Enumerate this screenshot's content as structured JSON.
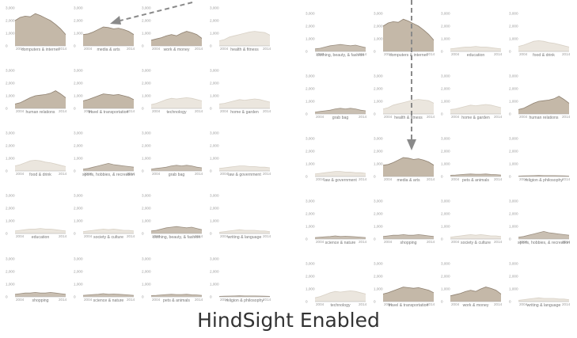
{
  "caption": "HindSight Enabled",
  "chart_data": [
    {
      "panel": "left",
      "type": "area",
      "x_start_label": "2004",
      "x_end_label": "2014",
      "y_ticks": [
        "3,000",
        "2,000",
        "1,000",
        "0"
      ],
      "ylim": [
        0,
        3000
      ],
      "charts": [
        {
          "label": "computers & internet",
          "state": "strong",
          "values": [
            2000,
            2250,
            2350,
            2300,
            2550,
            2400,
            2200,
            2000,
            1700,
            1350,
            900
          ]
        },
        {
          "label": "media & arts",
          "state": "strong",
          "values": [
            900,
            950,
            1100,
            1300,
            1500,
            1450,
            1350,
            1400,
            1300,
            1150,
            900
          ]
        },
        {
          "label": "work & money",
          "state": "strong",
          "values": [
            450,
            550,
            650,
            800,
            900,
            800,
            1000,
            1150,
            1050,
            900,
            600
          ]
        },
        {
          "label": "health & fitness",
          "state": "faint",
          "values": [
            400,
            500,
            700,
            800,
            900,
            1000,
            1100,
            1150,
            1100,
            1050,
            850
          ]
        },
        {
          "label": "human relations",
          "state": "strong",
          "values": [
            350,
            450,
            650,
            850,
            1000,
            1050,
            1100,
            1200,
            1400,
            1150,
            850
          ]
        },
        {
          "label": "travel & transportation",
          "state": "strong",
          "values": [
            600,
            700,
            850,
            1000,
            1150,
            1100,
            1050,
            1100,
            1000,
            900,
            700
          ]
        },
        {
          "label": "technology",
          "state": "faint",
          "values": [
            300,
            400,
            550,
            700,
            800,
            750,
            800,
            850,
            800,
            700,
            600
          ]
        },
        {
          "label": "home & garden",
          "state": "faint",
          "values": [
            350,
            400,
            500,
            600,
            700,
            650,
            700,
            750,
            700,
            600,
            500
          ]
        },
        {
          "label": "food & drink",
          "state": "faint",
          "values": [
            400,
            500,
            650,
            800,
            850,
            800,
            700,
            650,
            550,
            450,
            350
          ]
        },
        {
          "label": "sports, hobbies, & recreation",
          "state": "medium",
          "values": [
            150,
            200,
            300,
            400,
            500,
            600,
            500,
            450,
            400,
            350,
            300
          ]
        },
        {
          "label": "grab bag",
          "state": "medium",
          "values": [
            150,
            200,
            250,
            300,
            400,
            450,
            400,
            450,
            400,
            300,
            250
          ]
        },
        {
          "label": "law & government",
          "state": "faint",
          "values": [
            200,
            250,
            300,
            350,
            400,
            400,
            350,
            350,
            300,
            300,
            250
          ]
        },
        {
          "label": "education",
          "state": "faint",
          "values": [
            200,
            250,
            300,
            350,
            350,
            400,
            350,
            350,
            300,
            250,
            200
          ]
        },
        {
          "label": "society & culture",
          "state": "faint",
          "values": [
            150,
            200,
            250,
            300,
            350,
            300,
            350,
            300,
            250,
            250,
            200
          ]
        },
        {
          "label": "clothing, beauty, & fashion",
          "state": "medium",
          "values": [
            200,
            250,
            350,
            450,
            500,
            550,
            500,
            450,
            500,
            400,
            300
          ]
        },
        {
          "label": "writing & language",
          "state": "faint",
          "values": [
            100,
            150,
            200,
            250,
            300,
            250,
            250,
            250,
            200,
            200,
            150
          ]
        },
        {
          "label": "shopping",
          "state": "medium",
          "values": [
            200,
            250,
            300,
            300,
            350,
            300,
            300,
            350,
            300,
            250,
            200
          ]
        },
        {
          "label": "science & nature",
          "state": "medium",
          "values": [
            120,
            150,
            180,
            200,
            250,
            200,
            220,
            200,
            180,
            150,
            120
          ]
        },
        {
          "label": "pets & animals",
          "state": "medium",
          "values": [
            100,
            120,
            150,
            180,
            200,
            180,
            180,
            200,
            160,
            150,
            120
          ]
        },
        {
          "label": "religion & philosophy",
          "state": "medium",
          "values": [
            40,
            50,
            60,
            70,
            80,
            70,
            70,
            70,
            60,
            50,
            40
          ]
        }
      ]
    },
    {
      "panel": "right",
      "type": "area",
      "x_start_label": "2004",
      "x_end_label": "2014",
      "y_ticks": [
        "3,000",
        "2,000",
        "1,000",
        "0"
      ],
      "ylim": [
        0,
        3000
      ],
      "charts": [
        {
          "label": "clothing, beauty, & fashion",
          "state": "medium",
          "values": [
            200,
            250,
            350,
            450,
            500,
            550,
            500,
            450,
            500,
            400,
            300
          ]
        },
        {
          "label": "computers & internet",
          "state": "strong",
          "values": [
            2000,
            2250,
            2350,
            2300,
            2550,
            2400,
            2200,
            2000,
            1700,
            1350,
            900
          ]
        },
        {
          "label": "education",
          "state": "faint",
          "values": [
            200,
            250,
            300,
            350,
            350,
            400,
            350,
            350,
            300,
            250,
            200
          ]
        },
        {
          "label": "food & drink",
          "state": "faint",
          "values": [
            400,
            500,
            650,
            800,
            850,
            800,
            700,
            650,
            550,
            450,
            350
          ]
        },
        {
          "label": "grab bag",
          "state": "medium",
          "values": [
            150,
            200,
            250,
            300,
            400,
            450,
            400,
            450,
            400,
            300,
            250
          ]
        },
        {
          "label": "health & fitness",
          "state": "faint",
          "values": [
            400,
            500,
            700,
            800,
            900,
            1000,
            1100,
            1150,
            1100,
            1050,
            850
          ]
        },
        {
          "label": "home & garden",
          "state": "faint",
          "values": [
            350,
            400,
            500,
            600,
            700,
            650,
            700,
            750,
            700,
            600,
            500
          ]
        },
        {
          "label": "human relations",
          "state": "strong",
          "values": [
            350,
            450,
            650,
            850,
            1000,
            1050,
            1100,
            1200,
            1400,
            1150,
            850
          ]
        },
        {
          "label": "law & government",
          "state": "faint",
          "values": [
            200,
            250,
            300,
            350,
            400,
            400,
            350,
            350,
            300,
            300,
            250
          ]
        },
        {
          "label": "media & arts",
          "state": "strong",
          "values": [
            900,
            950,
            1100,
            1300,
            1500,
            1450,
            1350,
            1400,
            1300,
            1150,
            900
          ]
        },
        {
          "label": "pets & animals",
          "state": "medium",
          "values": [
            100,
            120,
            150,
            180,
            200,
            180,
            180,
            200,
            160,
            150,
            120
          ]
        },
        {
          "label": "religion & philosophy",
          "state": "medium",
          "values": [
            40,
            50,
            60,
            70,
            80,
            70,
            70,
            70,
            60,
            50,
            40
          ]
        },
        {
          "label": "science & nature",
          "state": "medium",
          "values": [
            120,
            150,
            180,
            200,
            250,
            200,
            220,
            200,
            180,
            150,
            120
          ]
        },
        {
          "label": "shopping",
          "state": "medium",
          "values": [
            200,
            250,
            300,
            300,
            350,
            300,
            300,
            350,
            300,
            250,
            200
          ]
        },
        {
          "label": "society & culture",
          "state": "faint",
          "values": [
            150,
            200,
            250,
            300,
            350,
            300,
            350,
            300,
            250,
            250,
            200
          ]
        },
        {
          "label": "sports, hobbies, & recreation",
          "state": "medium",
          "values": [
            150,
            200,
            300,
            400,
            500,
            600,
            500,
            450,
            400,
            350,
            300
          ]
        },
        {
          "label": "technology",
          "state": "faint",
          "values": [
            300,
            400,
            550,
            700,
            800,
            750,
            800,
            850,
            800,
            700,
            600
          ]
        },
        {
          "label": "travel & transportation",
          "state": "strong",
          "values": [
            600,
            700,
            850,
            1000,
            1150,
            1100,
            1050,
            1100,
            1000,
            900,
            700
          ]
        },
        {
          "label": "work & money",
          "state": "strong",
          "values": [
            450,
            550,
            650,
            800,
            900,
            800,
            1000,
            1150,
            1050,
            900,
            600
          ]
        },
        {
          "label": "writing & language",
          "state": "faint",
          "values": [
            100,
            150,
            200,
            250,
            300,
            250,
            250,
            250,
            200,
            200,
            150
          ]
        }
      ]
    }
  ],
  "colors": {
    "strong_fill": "#c4b8a8",
    "strong_stroke": "#8e8070",
    "medium_fill": "#c9bfb2",
    "medium_stroke": "#9c9082",
    "faint_fill": "#ebe6de",
    "faint_stroke": "#d8d1c6",
    "axis": "#aaaaaa",
    "arrow": "#8a8a8a"
  }
}
